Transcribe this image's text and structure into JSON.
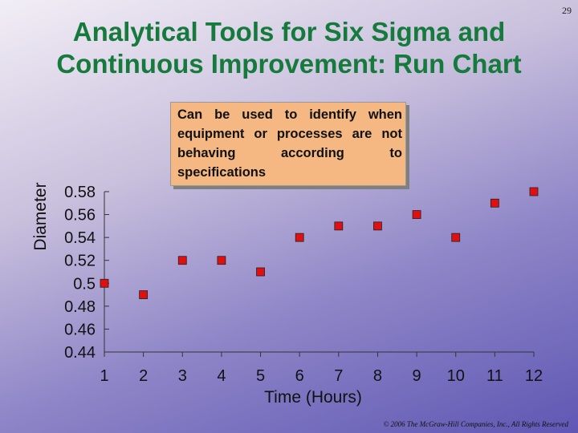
{
  "slide_number": "29",
  "title_line1": "Analytical Tools for Six Sigma and",
  "title_line2": "Continuous Improvement: Run Chart",
  "callout": "Can be used to identify when equipment or processes are not behaving according to specifications",
  "footer": "© 2006 The McGraw-Hill Companies, Inc., All Rights Reserved",
  "colors": {
    "title": "#157a3c",
    "marker": "#e01010",
    "callout_bg": "#f6b883"
  },
  "chart_data": {
    "type": "scatter",
    "title": "",
    "xlabel": "Time (Hours)",
    "ylabel": "Diameter",
    "x": [
      1,
      2,
      3,
      4,
      5,
      6,
      7,
      8,
      9,
      10,
      11,
      12
    ],
    "y": [
      0.5,
      0.49,
      0.52,
      0.52,
      0.51,
      0.54,
      0.55,
      0.55,
      0.56,
      0.54,
      0.57,
      0.58
    ],
    "xticks": [
      "1",
      "2",
      "3",
      "4",
      "5",
      "6",
      "7",
      "8",
      "9",
      "10",
      "11",
      "12"
    ],
    "yticks": [
      "0.44",
      "0.46",
      "0.48",
      "0.5",
      "0.52",
      "0.54",
      "0.56",
      "0.58"
    ],
    "ylim": [
      0.44,
      0.58
    ],
    "grid": false,
    "legend": "none"
  }
}
